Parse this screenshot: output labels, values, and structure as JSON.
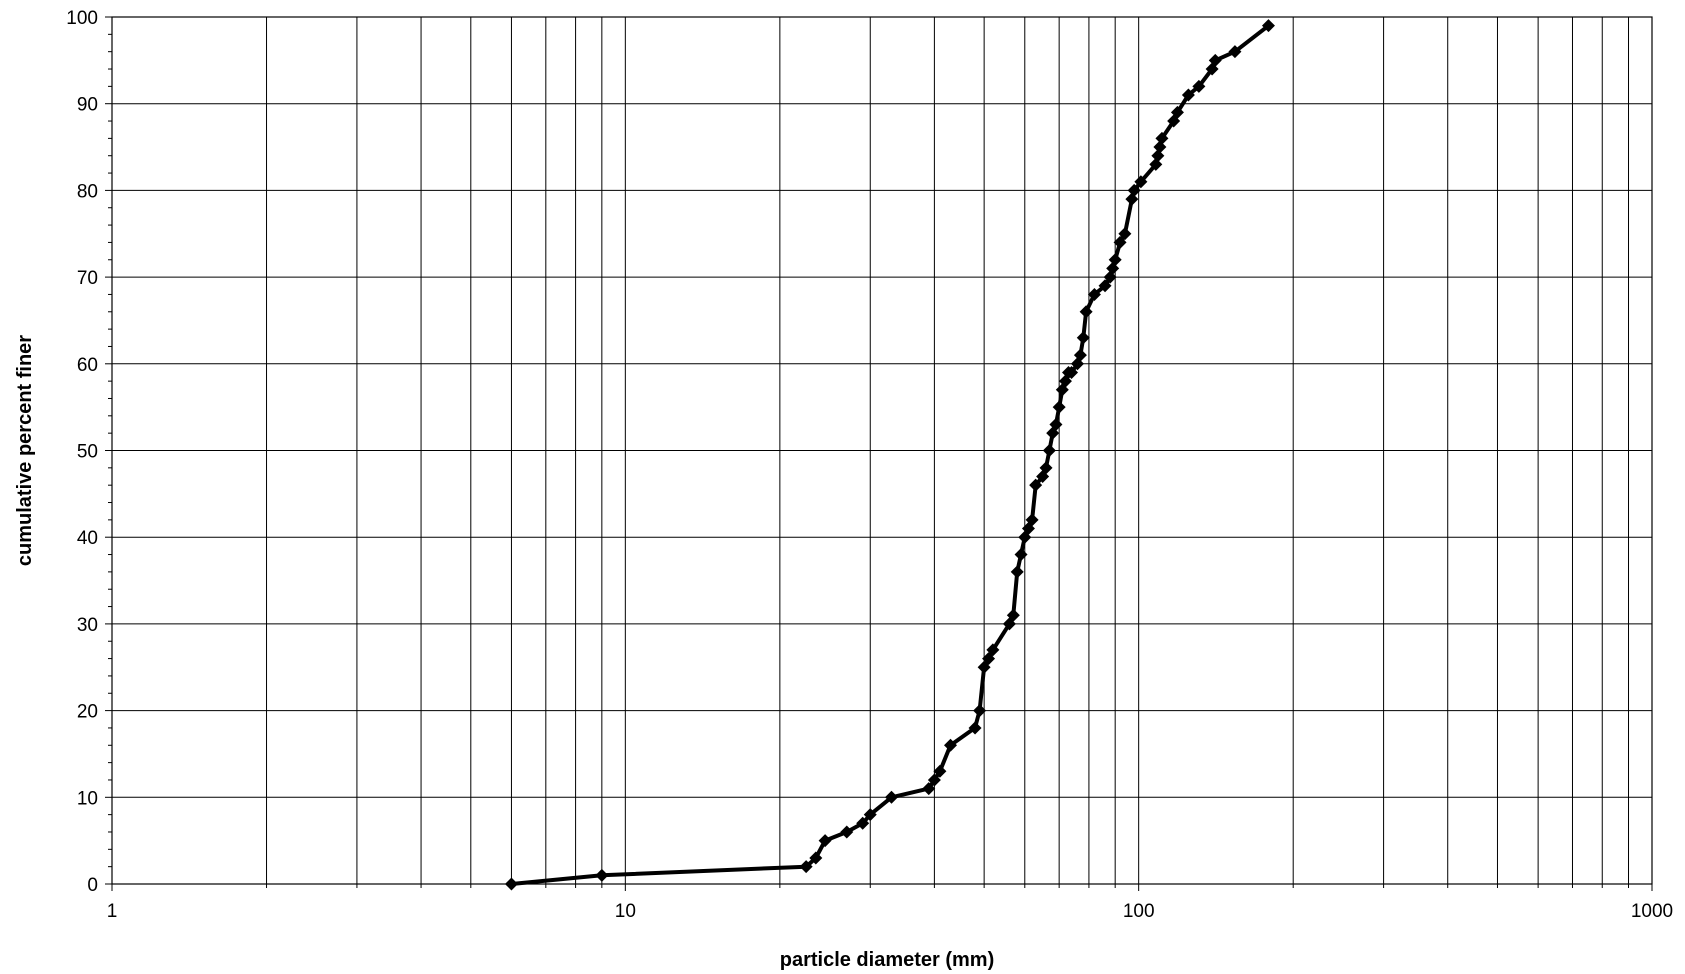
{
  "chart_data": {
    "type": "line",
    "title": "",
    "xlabel": "particle diameter (mm)",
    "ylabel": "cumulative percent finer",
    "x_scale": "log",
    "xlim": [
      1,
      1000
    ],
    "ylim": [
      0,
      100
    ],
    "x_tick_labels": [
      "1",
      "10",
      "100",
      "1000"
    ],
    "x_tick_values": [
      1,
      10,
      100,
      1000
    ],
    "y_tick_labels": [
      "0",
      "10",
      "20",
      "30",
      "40",
      "50",
      "60",
      "70",
      "80",
      "90",
      "100"
    ],
    "y_tick_values": [
      0,
      10,
      20,
      30,
      40,
      50,
      60,
      70,
      80,
      90,
      100
    ],
    "grid": true,
    "legend": "none",
    "line_color": "#000000",
    "marker": "diamond",
    "series": [
      {
        "x": [
          6,
          9,
          22.5,
          23.5,
          24.5,
          27,
          29,
          30,
          33,
          39,
          40,
          41,
          43,
          48,
          49,
          50,
          51,
          52,
          56,
          57,
          58,
          59,
          60,
          61,
          62,
          63,
          65,
          66,
          67,
          68,
          69,
          70,
          71,
          72,
          73,
          74,
          76,
          77,
          78,
          79,
          82,
          86,
          88,
          89,
          90,
          92,
          94,
          97,
          98,
          101,
          108,
          109,
          110,
          111,
          117,
          119,
          125,
          131,
          139,
          141,
          154,
          179
        ],
        "y": [
          0,
          1,
          2,
          3,
          5,
          6,
          7,
          8,
          10,
          11,
          12,
          13,
          16,
          18,
          20,
          25,
          26,
          27,
          30,
          31,
          36,
          38,
          40,
          41,
          42,
          46,
          47,
          48,
          50,
          52,
          53,
          55,
          57,
          58,
          59,
          59,
          60,
          61,
          63,
          66,
          68,
          69,
          70,
          71,
          72,
          74,
          75,
          79,
          80,
          81,
          83,
          84,
          85,
          86,
          88,
          89,
          91,
          92,
          94,
          95,
          96,
          99
        ]
      }
    ]
  }
}
